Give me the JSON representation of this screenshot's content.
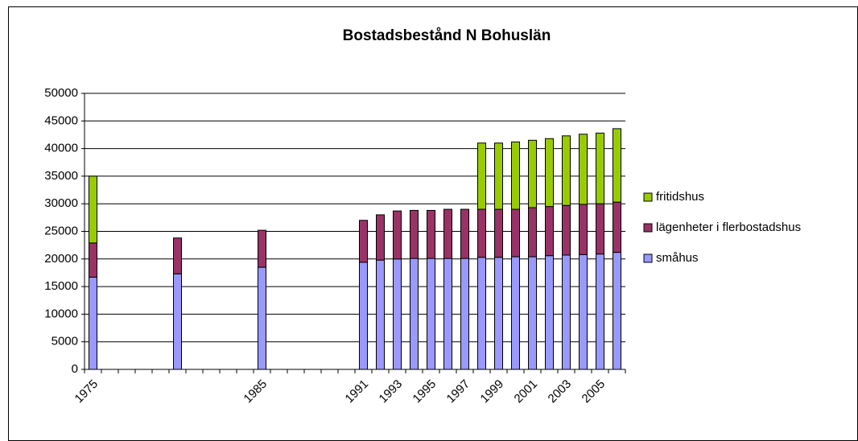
{
  "chart_data": {
    "type": "stacked-bar",
    "title": "Bostadsbestånd N Bohuslän",
    "categories": [
      "1975",
      null,
      null,
      null,
      null,
      null,
      null,
      null,
      null,
      null,
      "1985",
      null,
      null,
      null,
      null,
      null,
      "1991",
      null,
      "1993",
      null,
      "1995",
      null,
      "1997",
      null,
      "1999",
      null,
      "2001",
      null,
      "2003",
      null,
      "2005",
      null
    ],
    "series": [
      {
        "name": "småhus",
        "color": "#9999ff",
        "values": [
          16700,
          null,
          null,
          null,
          null,
          17300,
          null,
          null,
          null,
          null,
          18500,
          null,
          null,
          null,
          null,
          null,
          19400,
          19800,
          20000,
          20100,
          20100,
          20100,
          20100,
          20300,
          20300,
          20400,
          20400,
          20600,
          20700,
          20800,
          20900,
          21200
        ]
      },
      {
        "name": "lägenheter i flerbostadshus",
        "color": "#993366",
        "values": [
          6200,
          null,
          null,
          null,
          null,
          6500,
          null,
          null,
          null,
          null,
          6700,
          null,
          null,
          null,
          null,
          null,
          7600,
          8200,
          8700,
          8700,
          8700,
          8900,
          8900,
          8700,
          8700,
          8600,
          8900,
          8900,
          9000,
          9100,
          9100,
          9100
        ]
      },
      {
        "name": "fritidshus",
        "color": "#99cc00",
        "values": [
          12100,
          null,
          null,
          null,
          null,
          null,
          null,
          null,
          null,
          null,
          null,
          null,
          null,
          null,
          null,
          null,
          null,
          null,
          null,
          null,
          null,
          null,
          null,
          12000,
          12000,
          12200,
          12200,
          12300,
          12600,
          12700,
          12800,
          13300
        ]
      }
    ],
    "ylim": [
      0,
      50000
    ],
    "yticks": [
      0,
      5000,
      10000,
      15000,
      20000,
      25000,
      30000,
      35000,
      40000,
      45000,
      50000
    ],
    "grid": true,
    "legend": "right"
  }
}
